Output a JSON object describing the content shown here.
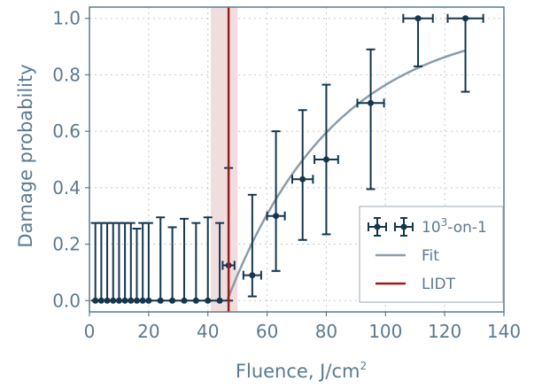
{
  "chart_data": {
    "type": "scatter",
    "xlabel": "Fluence, J/cm",
    "xlabel_sup": "2",
    "ylabel": "Damage probability",
    "xlim": [
      0,
      140
    ],
    "ylim": [
      -0.04,
      1.04
    ],
    "x_ticks": [
      "0",
      "20",
      "40",
      "60",
      "80",
      "100",
      "120",
      "140"
    ],
    "y_ticks": [
      "0.0",
      "0.2",
      "0.4",
      "0.6",
      "0.8",
      "1.0"
    ],
    "grid": true,
    "legend_placement": "lower-right",
    "colors": {
      "points": "#14374f",
      "fit": "#8a9cab",
      "lidt": "#9b1c1c",
      "band": "#f0dede",
      "axis": "#5b7a90",
      "grid": "#c8c8c8"
    },
    "series": [
      {
        "name": "1",
        "name_prefix": "10",
        "name_sup": "3",
        "name_suffix": "-on-1",
        "style": "errorbar",
        "points": [
          {
            "x": 2,
            "y": 0.0,
            "ylo": 0.0,
            "yhi": 0.275
          },
          {
            "x": 4,
            "y": 0.0,
            "ylo": 0.0,
            "yhi": 0.275
          },
          {
            "x": 6,
            "y": 0.0,
            "ylo": 0.0,
            "yhi": 0.275
          },
          {
            "x": 8,
            "y": 0.0,
            "ylo": 0.0,
            "yhi": 0.275
          },
          {
            "x": 10,
            "y": 0.0,
            "ylo": 0.0,
            "yhi": 0.275
          },
          {
            "x": 12,
            "y": 0.0,
            "ylo": 0.0,
            "yhi": 0.275
          },
          {
            "x": 14,
            "y": 0.0,
            "ylo": 0.0,
            "yhi": 0.275
          },
          {
            "x": 16,
            "y": 0.0,
            "ylo": 0.0,
            "yhi": 0.255
          },
          {
            "x": 18,
            "y": 0.0,
            "ylo": 0.0,
            "yhi": 0.275
          },
          {
            "x": 20,
            "y": 0.0,
            "ylo": 0.0,
            "yhi": 0.275
          },
          {
            "x": 24,
            "y": 0.0,
            "ylo": 0.0,
            "yhi": 0.295
          },
          {
            "x": 28,
            "y": 0.0,
            "ylo": 0.0,
            "yhi": 0.26
          },
          {
            "x": 32,
            "y": 0.0,
            "ylo": 0.0,
            "yhi": 0.29
          },
          {
            "x": 36,
            "y": 0.0,
            "ylo": 0.0,
            "yhi": 0.275
          },
          {
            "x": 40,
            "y": 0.0,
            "ylo": 0.0,
            "yhi": 0.295
          },
          {
            "x": 44,
            "y": 0.0,
            "ylo": 0.0,
            "yhi": 0.275
          },
          {
            "x": 47,
            "y": 0.125,
            "ylo": 0.0,
            "yhi": 0.47,
            "xerr": 2
          },
          {
            "x": 55,
            "y": 0.09,
            "ylo": 0.015,
            "yhi": 0.375,
            "xerr": 3
          },
          {
            "x": 63,
            "y": 0.3,
            "ylo": 0.105,
            "yhi": 0.6,
            "xerr": 3
          },
          {
            "x": 72,
            "y": 0.43,
            "ylo": 0.215,
            "yhi": 0.675,
            "xerr": 3.5
          },
          {
            "x": 80,
            "y": 0.5,
            "ylo": 0.235,
            "yhi": 0.765,
            "xerr": 4
          },
          {
            "x": 95,
            "y": 0.7,
            "ylo": 0.395,
            "yhi": 0.89,
            "xerr": 4.5
          },
          {
            "x": 111,
            "y": 1.0,
            "ylo": 0.83,
            "yhi": 1.0,
            "xerr": 5
          },
          {
            "x": 127,
            "y": 1.0,
            "ylo": 0.74,
            "yhi": 1.0,
            "xerr": 6
          }
        ]
      },
      {
        "name": "Fit",
        "style": "line",
        "threshold": 46.5,
        "x_end": 127,
        "k": 0.027
      },
      {
        "name": "LIDT",
        "style": "vline",
        "x": 47,
        "band": [
          41,
          50
        ]
      }
    ]
  }
}
